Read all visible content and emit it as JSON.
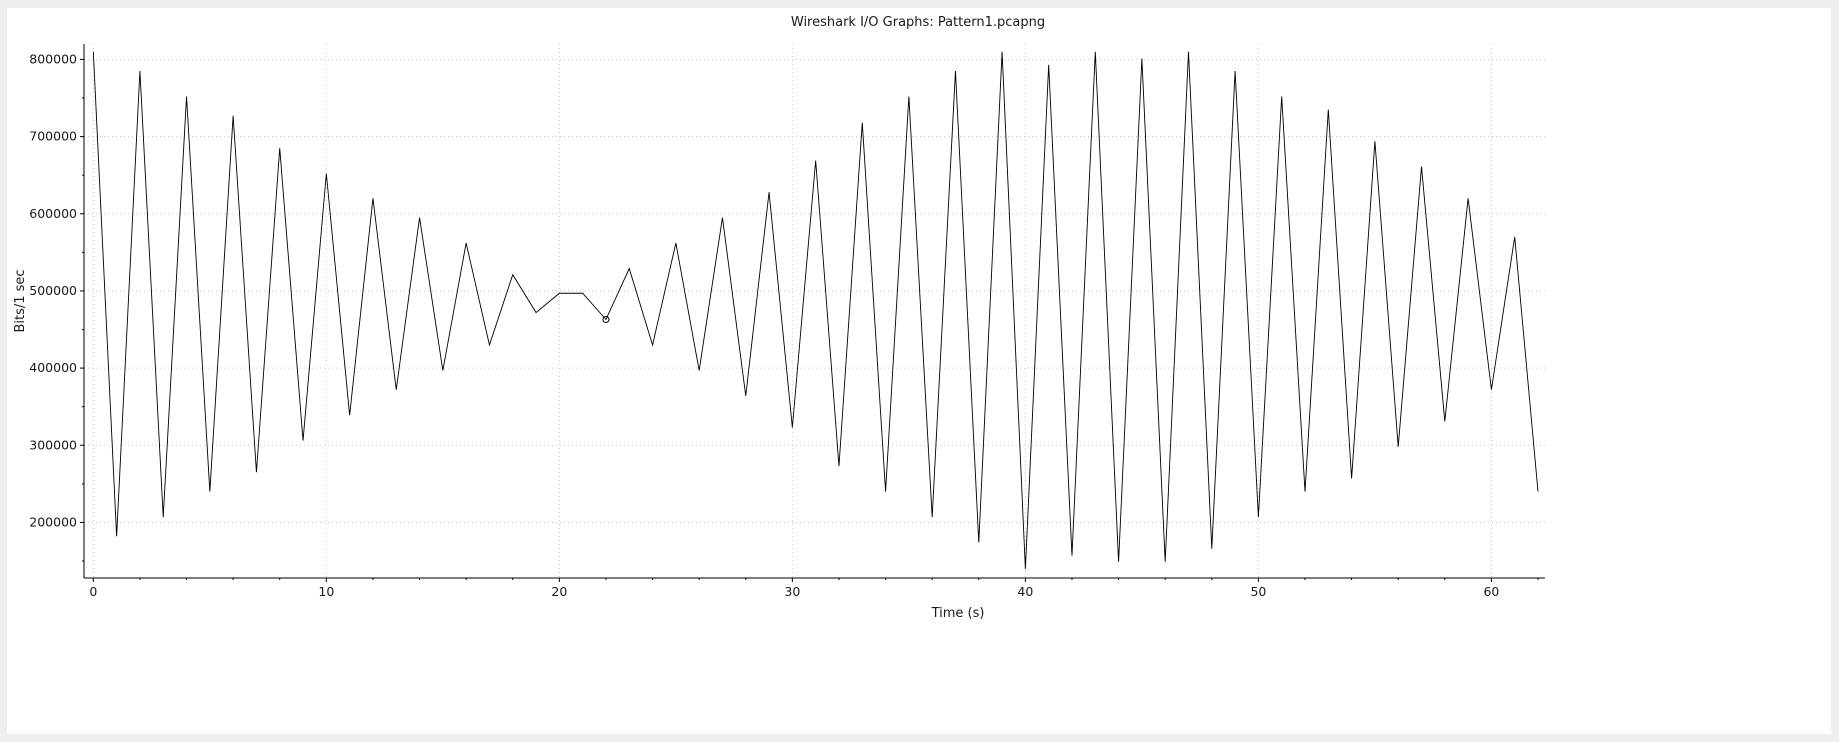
{
  "chart_data": {
    "type": "line",
    "title": "Wireshark I/O Graphs: Pattern1.pcapng",
    "xlabel": "Time (s)",
    "ylabel": "Bits/1 sec",
    "xlim": [
      -0.4,
      62.3
    ],
    "ylim": [
      128000,
      820000
    ],
    "xticks": [
      0,
      10,
      20,
      30,
      40,
      50,
      60
    ],
    "yticks": [
      200000,
      300000,
      400000,
      500000,
      600000,
      700000,
      800000
    ],
    "grid": true,
    "legend": "none",
    "series": [
      {
        "color": "#000000",
        "x": [
          0,
          1,
          2,
          3,
          4,
          5,
          6,
          7,
          8,
          9,
          10,
          11,
          12,
          13,
          14,
          15,
          16,
          17,
          18,
          19,
          20,
          21,
          22,
          23,
          24,
          25,
          26,
          27,
          28,
          29,
          30,
          31,
          32,
          33,
          34,
          35,
          36,
          37,
          38,
          39,
          40,
          41,
          42,
          43,
          44,
          45,
          46,
          47,
          48,
          49,
          50,
          51,
          52,
          53,
          54,
          55,
          56,
          57,
          58,
          59,
          60,
          61,
          62
        ],
        "y": [
          810000,
          182000,
          785000,
          207000,
          752000,
          240000,
          727000,
          265000,
          685000,
          306000,
          652000,
          339000,
          620000,
          372000,
          595000,
          397000,
          562000,
          430000,
          521000,
          472000,
          497000,
          497000,
          463000,
          529000,
          430000,
          562000,
          397000,
          595000,
          364000,
          628000,
          323000,
          669000,
          273000,
          718000,
          240000,
          752000,
          207000,
          785000,
          174000,
          810000,
          140000,
          793000,
          157000,
          810000,
          149000,
          801000,
          149000,
          810000,
          166000,
          785000,
          207000,
          752000,
          240000,
          735000,
          257000,
          694000,
          298000,
          661000,
          331000,
          620000,
          372000,
          570000,
          240000
        ]
      }
    ],
    "marker": {
      "x": 22,
      "y": 463000
    }
  }
}
